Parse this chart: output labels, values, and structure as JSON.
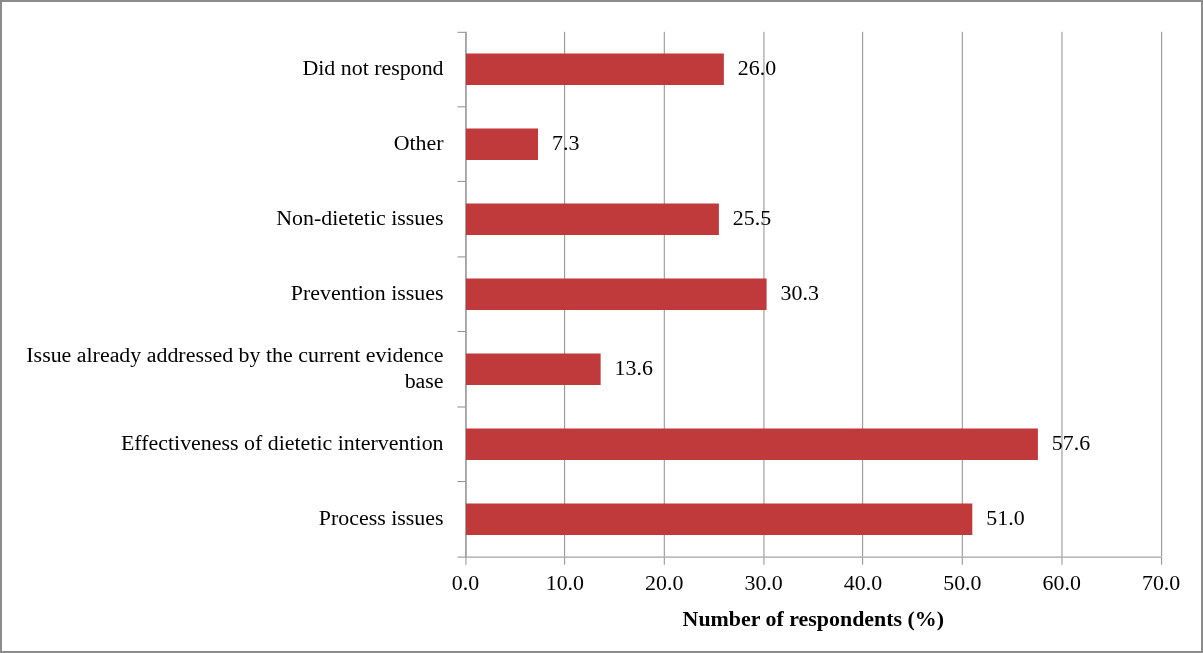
{
  "chart_data": {
    "type": "bar",
    "orientation": "horizontal",
    "categories": [
      "Did not respond",
      "Other",
      "Non-dietetic issues",
      "Prevention issues",
      "Issue already addressed by the current evidence base",
      "Effectiveness of dietetic intervention",
      "Process issues"
    ],
    "values": [
      26.0,
      7.3,
      25.5,
      30.3,
      13.6,
      57.6,
      51.0
    ],
    "value_labels": [
      "26.0",
      "7.3",
      "25.5",
      "30.3",
      "13.6",
      "57.6",
      "51.0"
    ],
    "color": "#c0393b",
    "xlabel": "Number of respondents (%)",
    "xlim": [
      0,
      70
    ],
    "xticks": [
      {
        "value": 0,
        "label": "0.0"
      },
      {
        "value": 10,
        "label": "10.0"
      },
      {
        "value": 20,
        "label": "20.0"
      },
      {
        "value": 30,
        "label": "30.0"
      },
      {
        "value": 40,
        "label": "40.0"
      },
      {
        "value": 50,
        "label": "50.0"
      },
      {
        "value": 60,
        "label": "60.0"
      },
      {
        "value": 70,
        "label": "70.0"
      }
    ],
    "grid": "x"
  }
}
